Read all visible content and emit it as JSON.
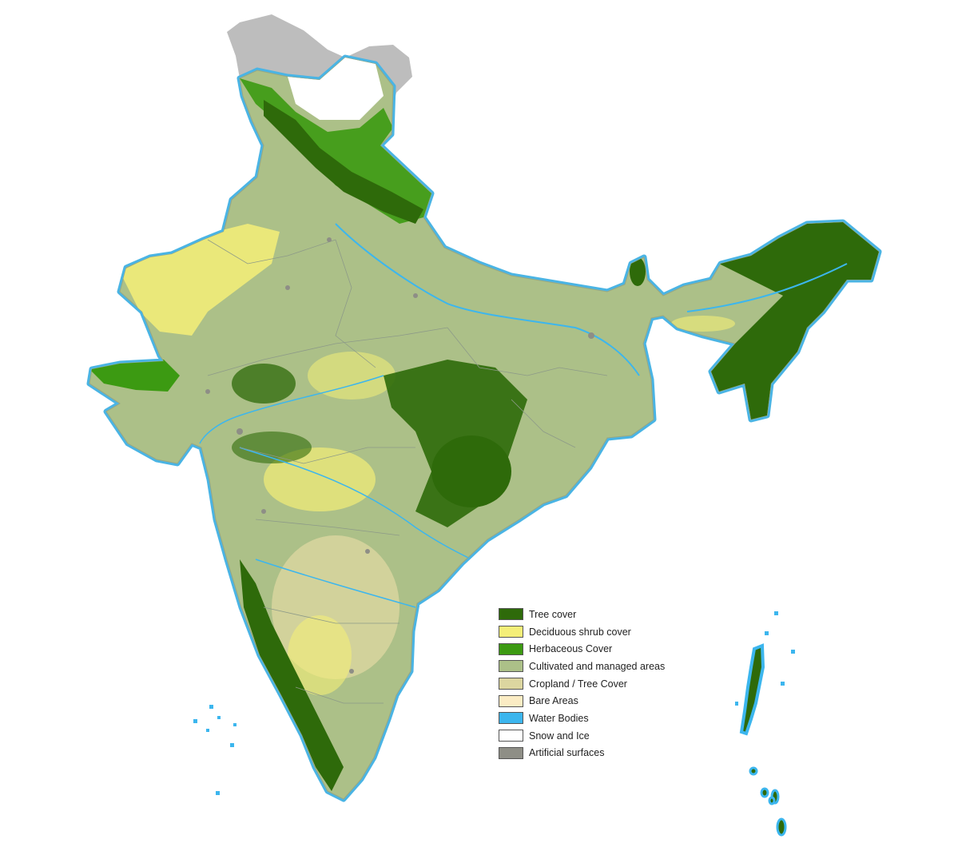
{
  "legend": {
    "items": [
      {
        "label": "Tree cover",
        "color": "#2e6a0a"
      },
      {
        "label": "Deciduous shrub cover",
        "color": "#f4ee78"
      },
      {
        "label": "Herbaceous Cover",
        "color": "#3c9a12"
      },
      {
        "label": "Cultivated and managed areas",
        "color": "#acc088"
      },
      {
        "label": "Cropland / Tree Cover",
        "color": "#dcd6a0"
      },
      {
        "label": "Bare Areas",
        "color": "#fbecc4"
      },
      {
        "label": "Water Bodies",
        "color": "#3cb6ee"
      },
      {
        "label": "Snow and Ice",
        "color": "#ffffff"
      },
      {
        "label": "Artificial surfaces",
        "color": "#8e8e86"
      }
    ]
  },
  "colors": {
    "disputed_region": "#bdbdbd",
    "coastline": "#4ab4e4",
    "state_border": "#8d9a88"
  }
}
